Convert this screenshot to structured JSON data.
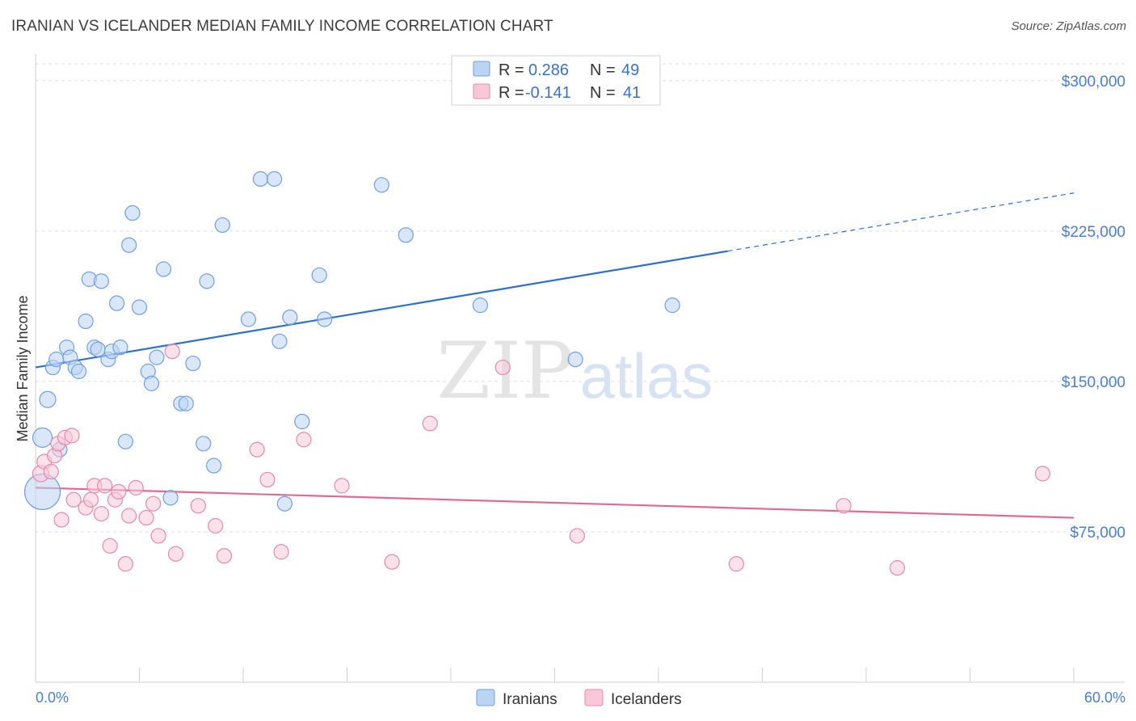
{
  "title": "IRANIAN VS ICELANDER MEDIAN FAMILY INCOME CORRELATION CHART",
  "source": "Source: ZipAtlas.com",
  "watermark": {
    "zip": "ZIP",
    "atlas": "atlas"
  },
  "legend": {
    "r_label": "R =",
    "n_label": "N =",
    "rows": [
      {
        "r": "0.286",
        "n": "49",
        "color": "#6fa0e0",
        "fill": "#bcd4f4"
      },
      {
        "r": "-0.141",
        "n": "41",
        "color": "#e68aa8",
        "fill": "#f8c8d8"
      }
    ]
  },
  "chart_data": {
    "type": "scatter",
    "title": "IRANIAN VS ICELANDER MEDIAN FAMILY INCOME CORRELATION CHART",
    "xlabel": "",
    "ylabel": "Median Family Income",
    "xlim": [
      0,
      60
    ],
    "ylim": [
      0,
      310000
    ],
    "x_tick_labels": [
      "0.0%",
      "60.0%"
    ],
    "y_ticks": [
      75000,
      150000,
      225000,
      300000
    ],
    "y_tick_labels": [
      "$75,000",
      "$150,000",
      "$225,000",
      "$300,000"
    ],
    "grid": true,
    "legend_position": "top-center",
    "series": [
      {
        "name": "Iranians",
        "color": "#6fa0e0",
        "fill": "#bcd4f4",
        "trend": {
          "x": [
            0,
            40
          ],
          "y": [
            157000,
            215000
          ],
          "dashed_to": [
            60,
            244000
          ]
        },
        "points": [
          [
            0.4,
            95000,
            22
          ],
          [
            0.4,
            122000,
            12
          ],
          [
            0.7,
            141000,
            10
          ],
          [
            1.0,
            157000,
            9
          ],
          [
            1.2,
            161000,
            9
          ],
          [
            1.4,
            116000,
            9
          ],
          [
            1.8,
            167000,
            9
          ],
          [
            2.0,
            162000,
            9
          ],
          [
            2.3,
            157000,
            9
          ],
          [
            2.5,
            155000,
            9
          ],
          [
            2.9,
            180000,
            9
          ],
          [
            3.1,
            201000,
            9
          ],
          [
            3.4,
            167000,
            9
          ],
          [
            3.6,
            166000,
            9
          ],
          [
            3.8,
            200000,
            9
          ],
          [
            4.2,
            161000,
            9
          ],
          [
            4.4,
            165000,
            9
          ],
          [
            4.7,
            189000,
            9
          ],
          [
            4.9,
            167000,
            9
          ],
          [
            5.2,
            120000,
            9
          ],
          [
            5.4,
            218000,
            9
          ],
          [
            5.6,
            234000,
            9
          ],
          [
            6.0,
            187000,
            9
          ],
          [
            6.5,
            155000,
            9
          ],
          [
            6.7,
            149000,
            9
          ],
          [
            7.0,
            162000,
            9
          ],
          [
            7.4,
            206000,
            9
          ],
          [
            7.8,
            92000,
            9
          ],
          [
            8.4,
            139000,
            9
          ],
          [
            8.7,
            139000,
            9
          ],
          [
            9.1,
            159000,
            9
          ],
          [
            9.7,
            119000,
            9
          ],
          [
            9.9,
            200000,
            9
          ],
          [
            10.3,
            108000,
            9
          ],
          [
            10.8,
            228000,
            9
          ],
          [
            12.3,
            181000,
            9
          ],
          [
            13.0,
            251000,
            9
          ],
          [
            13.8,
            251000,
            9
          ],
          [
            14.1,
            170000,
            9
          ],
          [
            14.4,
            89000,
            9
          ],
          [
            14.7,
            182000,
            9
          ],
          [
            15.4,
            130000,
            9
          ],
          [
            16.4,
            203000,
            9
          ],
          [
            16.7,
            181000,
            9
          ],
          [
            20.0,
            248000,
            9
          ],
          [
            21.4,
            223000,
            9
          ],
          [
            25.7,
            188000,
            9
          ],
          [
            31.2,
            161000,
            9
          ],
          [
            36.8,
            188000,
            9
          ]
        ]
      },
      {
        "name": "Icelanders",
        "color": "#e68aa8",
        "fill": "#f8c8d8",
        "trend": {
          "x": [
            0,
            60
          ],
          "y": [
            97000,
            82000
          ]
        },
        "points": [
          [
            0.3,
            104000,
            10
          ],
          [
            0.5,
            110000,
            9
          ],
          [
            0.9,
            105000,
            9
          ],
          [
            1.1,
            113000,
            9
          ],
          [
            1.3,
            119000,
            9
          ],
          [
            1.5,
            81000,
            9
          ],
          [
            1.7,
            122000,
            9
          ],
          [
            2.1,
            123000,
            9
          ],
          [
            2.2,
            91000,
            9
          ],
          [
            2.9,
            87000,
            9
          ],
          [
            3.2,
            91000,
            9
          ],
          [
            3.4,
            98000,
            9
          ],
          [
            3.8,
            84000,
            9
          ],
          [
            4.0,
            98000,
            9
          ],
          [
            4.3,
            68000,
            9
          ],
          [
            4.6,
            91000,
            9
          ],
          [
            4.8,
            95000,
            9
          ],
          [
            5.2,
            59000,
            9
          ],
          [
            5.4,
            83000,
            9
          ],
          [
            5.8,
            97000,
            9
          ],
          [
            6.4,
            82000,
            9
          ],
          [
            6.8,
            89000,
            9
          ],
          [
            7.1,
            73000,
            9
          ],
          [
            7.9,
            165000,
            9
          ],
          [
            8.1,
            64000,
            9
          ],
          [
            9.4,
            88000,
            9
          ],
          [
            10.4,
            78000,
            9
          ],
          [
            10.9,
            63000,
            9
          ],
          [
            12.8,
            116000,
            9
          ],
          [
            13.4,
            101000,
            9
          ],
          [
            14.2,
            65000,
            9
          ],
          [
            15.5,
            121000,
            9
          ],
          [
            17.7,
            98000,
            9
          ],
          [
            20.6,
            60000,
            9
          ],
          [
            22.8,
            129000,
            9
          ],
          [
            27.0,
            157000,
            9
          ],
          [
            31.3,
            73000,
            9
          ],
          [
            40.5,
            59000,
            9
          ],
          [
            46.7,
            88000,
            9
          ],
          [
            49.8,
            57000,
            9
          ],
          [
            58.2,
            104000,
            9
          ]
        ]
      }
    ]
  }
}
